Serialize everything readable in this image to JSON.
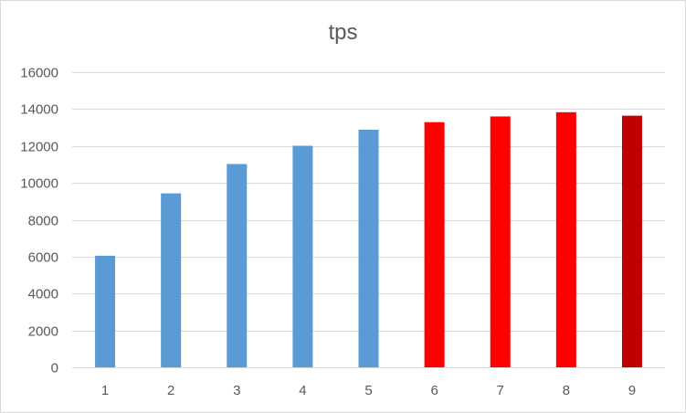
{
  "chart_data": {
    "type": "bar",
    "title": "tps",
    "xlabel": "",
    "ylabel": "",
    "categories": [
      "1",
      "2",
      "3",
      "4",
      "5",
      "6",
      "7",
      "8",
      "9"
    ],
    "values": [
      6050,
      9430,
      11020,
      12010,
      12880,
      13290,
      13600,
      13830,
      13640
    ],
    "bar_colors": [
      "#5b9bd5",
      "#5b9bd5",
      "#5b9bd5",
      "#5b9bd5",
      "#5b9bd5",
      "#ff0000",
      "#ff0000",
      "#ff0000",
      "#c00000"
    ],
    "ylim": [
      0,
      16000
    ],
    "yticks": [
      0,
      2000,
      4000,
      6000,
      8000,
      10000,
      12000,
      14000,
      16000
    ],
    "grid": true,
    "legend": "none"
  }
}
